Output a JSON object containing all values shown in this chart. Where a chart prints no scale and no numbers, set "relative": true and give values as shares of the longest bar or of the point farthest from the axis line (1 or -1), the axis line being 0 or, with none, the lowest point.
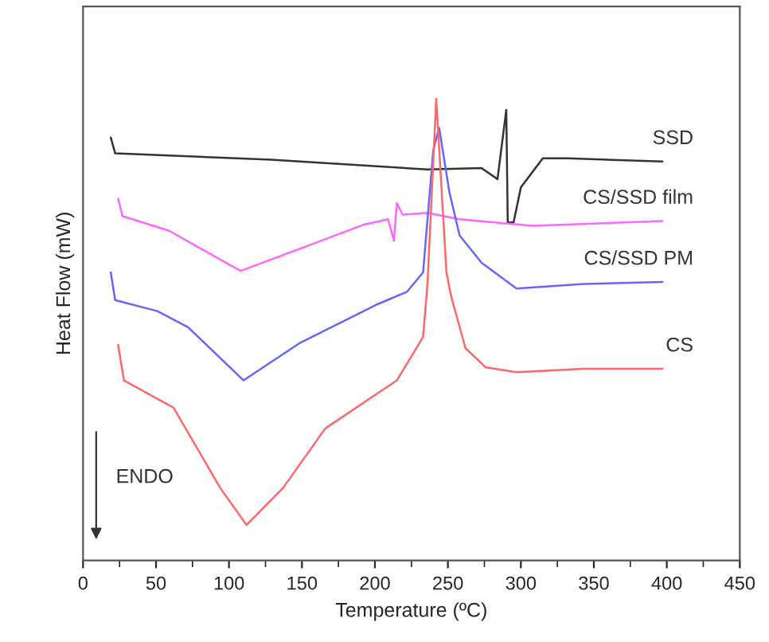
{
  "chart_data": {
    "type": "line",
    "relative": true,
    "xlabel": "Temperature (ºC)",
    "ylabel": "Heat Flow (mW)",
    "xlim": [
      0,
      450
    ],
    "xticks": [
      0,
      50,
      100,
      150,
      200,
      250,
      300,
      350,
      400,
      450
    ],
    "legend": false,
    "grid": false,
    "tick_labels": "x",
    "annotations": [
      "ENDO"
    ],
    "series": [
      {
        "name": "SSD",
        "color": "#333333",
        "x": [
          19,
          22,
          129,
          236,
          273,
          284,
          290,
          291,
          295,
          300,
          315,
          332,
          397
        ],
        "values": [
          0.916,
          0.882,
          0.868,
          0.847,
          0.85,
          0.826,
          0.976,
          0.732,
          0.732,
          0.808,
          0.871,
          0.871,
          0.864
        ]
      },
      {
        "name": "CS/SSD film",
        "color": "#ff66ff",
        "x": [
          24,
          27,
          59,
          108,
          193,
          209,
          213,
          215,
          219,
          236,
          258,
          308,
          397
        ],
        "values": [
          0.784,
          0.746,
          0.714,
          0.627,
          0.728,
          0.739,
          0.693,
          0.774,
          0.749,
          0.753,
          0.739,
          0.725,
          0.735
        ]
      },
      {
        "name": "CS/SSD PM",
        "color": "#6666ff",
        "x": [
          19,
          22,
          51,
          72,
          110,
          148,
          201,
          222,
          233,
          240,
          244,
          251,
          258,
          273,
          297,
          343,
          397
        ],
        "values": [
          0.624,
          0.564,
          0.54,
          0.505,
          0.39,
          0.47,
          0.554,
          0.582,
          0.624,
          0.889,
          0.937,
          0.798,
          0.704,
          0.645,
          0.589,
          0.599,
          0.603
        ]
      },
      {
        "name": "CS",
        "color": "#ff6666",
        "x": [
          24,
          28,
          62,
          94,
          112,
          137,
          166,
          215,
          233,
          236,
          242,
          249,
          252,
          262,
          276,
          297,
          343,
          397
        ],
        "values": [
          0.467,
          0.39,
          0.331,
          0.157,
          0.077,
          0.157,
          0.286,
          0.39,
          0.484,
          0.599,
          1,
          0.624,
          0.575,
          0.46,
          0.418,
          0.408,
          0.415,
          0.415
        ]
      }
    ]
  }
}
